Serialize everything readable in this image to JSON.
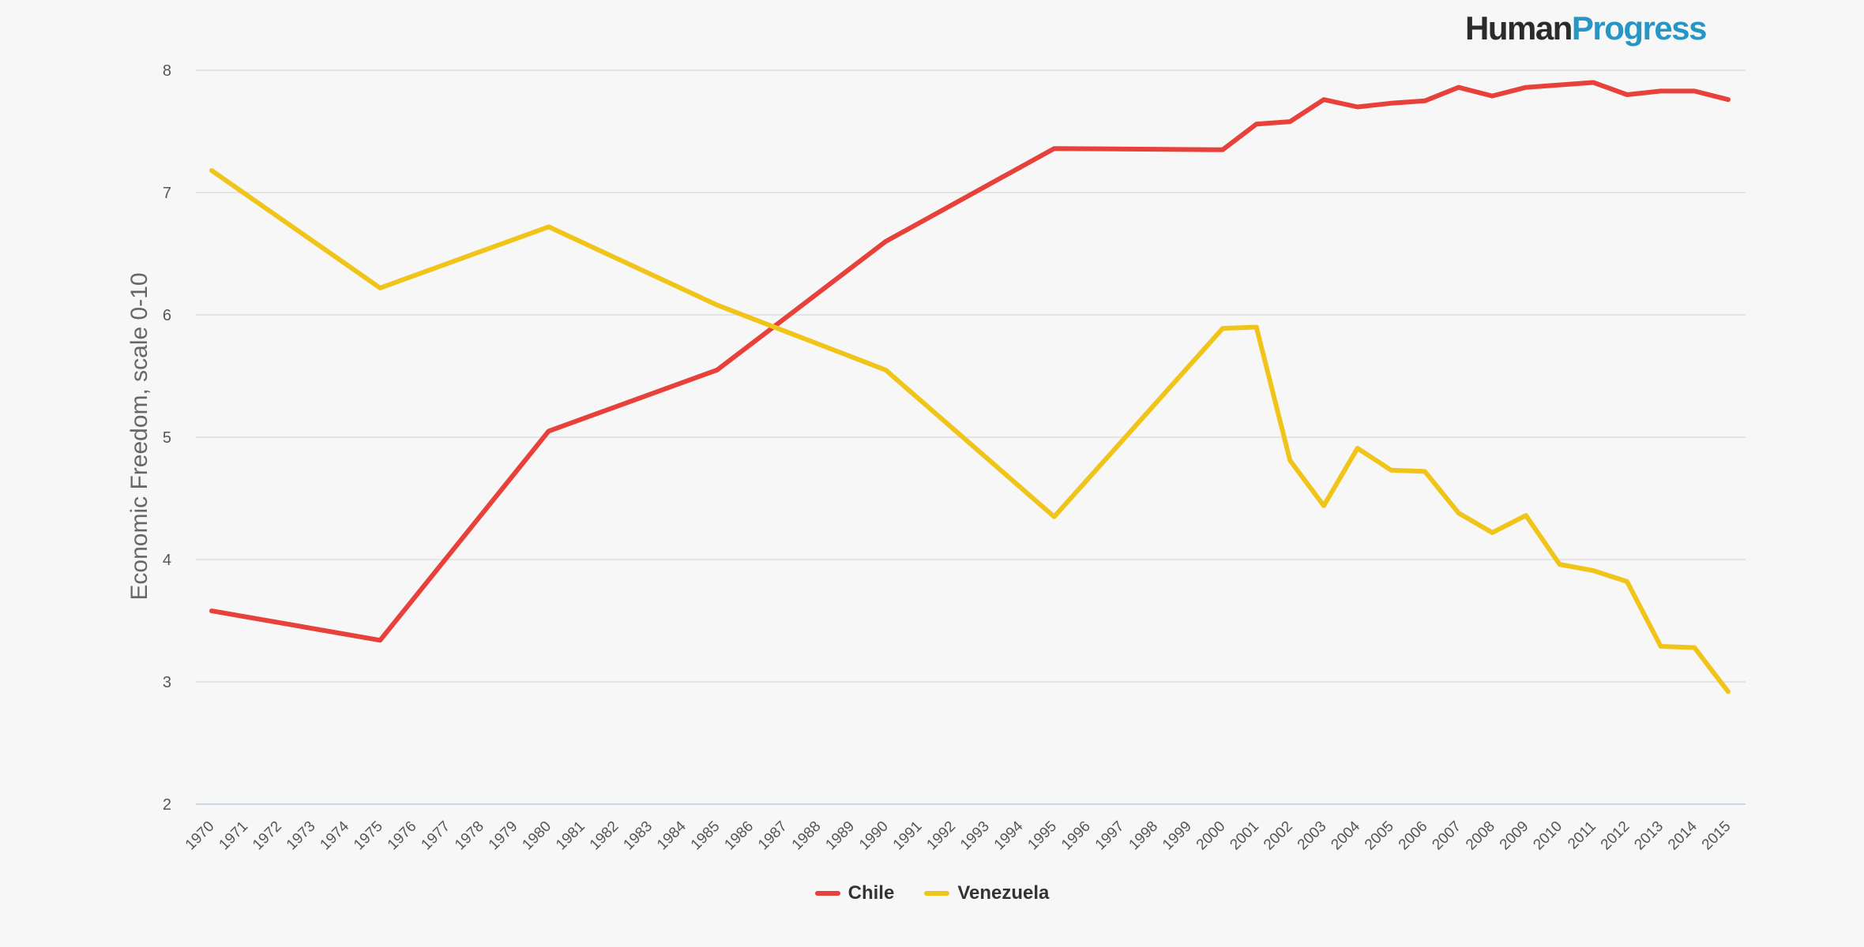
{
  "brand": {
    "part1": "Human",
    "part2": "Progress"
  },
  "colors": {
    "background": "#f7f7f7",
    "chile": "#e8403a",
    "venezuela": "#f0c419",
    "grid": "#dddddd",
    "axis_text": "#555555",
    "logo_dark": "#2b2b2b",
    "logo_blue": "#2696c4"
  },
  "chart_data": {
    "type": "line",
    "title": "",
    "xlabel": "",
    "ylabel": "Economic Freedom, scale 0-10",
    "ylim": [
      2,
      8
    ],
    "yticks": [
      2,
      3,
      4,
      5,
      6,
      7,
      8
    ],
    "grid": true,
    "legend_position": "bottom-center",
    "x": [
      1970,
      1971,
      1972,
      1973,
      1974,
      1975,
      1976,
      1977,
      1978,
      1979,
      1980,
      1981,
      1982,
      1983,
      1984,
      1985,
      1986,
      1987,
      1988,
      1989,
      1990,
      1991,
      1992,
      1993,
      1994,
      1995,
      1996,
      1997,
      1998,
      1999,
      2000,
      2001,
      2002,
      2003,
      2004,
      2005,
      2006,
      2007,
      2008,
      2009,
      2010,
      2011,
      2012,
      2013,
      2014,
      2015
    ],
    "series": [
      {
        "name": "Chile",
        "color": "#e8403a",
        "points": [
          [
            1970,
            3.58
          ],
          [
            1975,
            3.34
          ],
          [
            1980,
            5.05
          ],
          [
            1985,
            5.55
          ],
          [
            1990,
            6.6
          ],
          [
            1995,
            7.36
          ],
          [
            2000,
            7.35
          ],
          [
            2001,
            7.56
          ],
          [
            2002,
            7.58
          ],
          [
            2003,
            7.76
          ],
          [
            2004,
            7.7
          ],
          [
            2005,
            7.73
          ],
          [
            2006,
            7.75
          ],
          [
            2007,
            7.86
          ],
          [
            2008,
            7.79
          ],
          [
            2009,
            7.86
          ],
          [
            2010,
            7.88
          ],
          [
            2011,
            7.9
          ],
          [
            2012,
            7.8
          ],
          [
            2013,
            7.83
          ],
          [
            2014,
            7.83
          ],
          [
            2015,
            7.76
          ]
        ]
      },
      {
        "name": "Venezuela",
        "color": "#f0c419",
        "points": [
          [
            1970,
            7.18
          ],
          [
            1975,
            6.22
          ],
          [
            1980,
            6.72
          ],
          [
            1985,
            6.08
          ],
          [
            1990,
            5.55
          ],
          [
            1995,
            4.35
          ],
          [
            2000,
            5.89
          ],
          [
            2001,
            5.9
          ],
          [
            2002,
            4.81
          ],
          [
            2003,
            4.44
          ],
          [
            2004,
            4.91
          ],
          [
            2005,
            4.73
          ],
          [
            2006,
            4.72
          ],
          [
            2007,
            4.38
          ],
          [
            2008,
            4.22
          ],
          [
            2009,
            4.36
          ],
          [
            2010,
            3.96
          ],
          [
            2011,
            3.91
          ],
          [
            2012,
            3.82
          ],
          [
            2013,
            3.29
          ],
          [
            2014,
            3.28
          ],
          [
            2015,
            2.92
          ]
        ]
      }
    ]
  }
}
